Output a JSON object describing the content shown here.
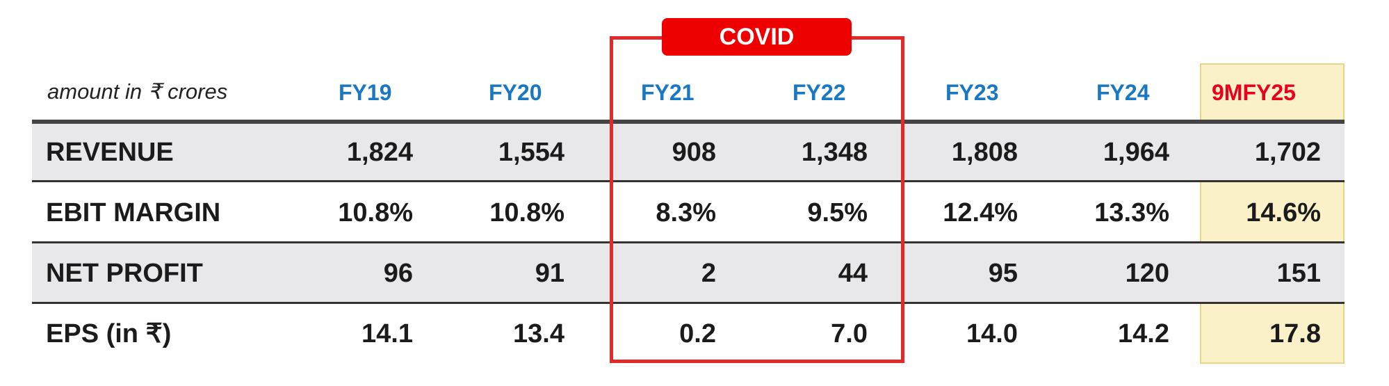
{
  "unit_note": "amount in ₹ crores",
  "covid_label": "COVID",
  "columns": [
    "FY19",
    "FY20",
    "FY21",
    "FY22",
    "FY23",
    "FY24",
    "9MFY25"
  ],
  "highlighted_column": "9MFY25",
  "colors": {
    "header_blue": "#1a78c2",
    "header_highlight_red": "#e8001c",
    "covid_red": "#e32a2a",
    "highlight_fill": "#fbf1c8",
    "band_gray": "#e8e8ea"
  },
  "rows": [
    {
      "label": "REVENUE",
      "values": [
        "1,824",
        "1,554",
        "908",
        "1,348",
        "1,808",
        "1,964",
        "1,702"
      ]
    },
    {
      "label": "EBIT MARGIN",
      "values": [
        "10.8%",
        "10.8%",
        "8.3%",
        "9.5%",
        "12.4%",
        "13.3%",
        "14.6%"
      ]
    },
    {
      "label": "NET PROFIT",
      "values": [
        "96",
        "91",
        "2",
        "44",
        "95",
        "120",
        "151"
      ]
    },
    {
      "label": "EPS (in ₹)",
      "values": [
        "14.1",
        "13.4",
        "0.2",
        "7.0",
        "14.0",
        "14.2",
        "17.8"
      ]
    }
  ]
}
